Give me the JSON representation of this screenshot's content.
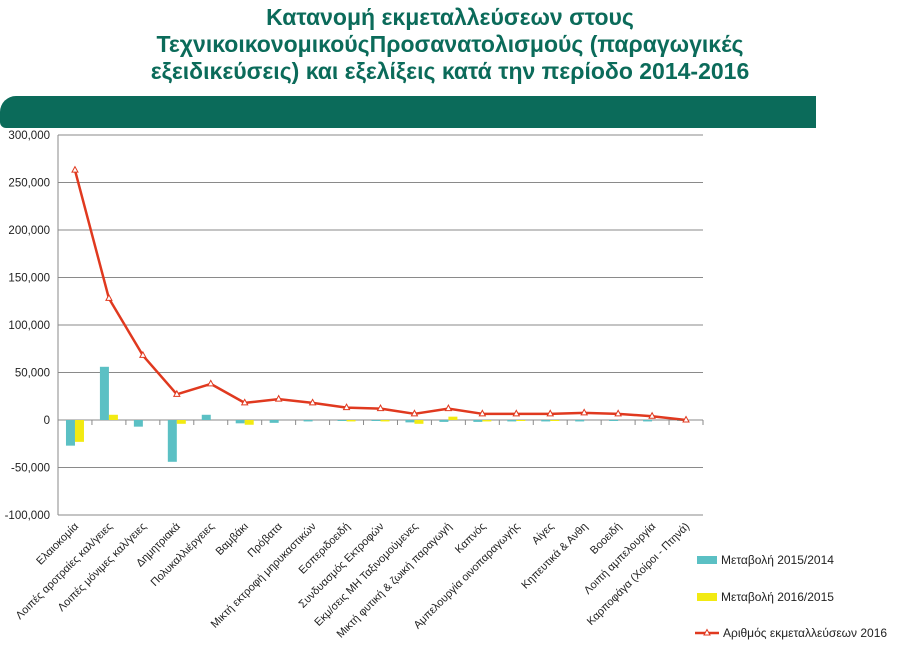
{
  "page": {
    "title_lines": [
      "Κατανομή  εκμεταλλεύσεων στους",
      "ΤεχνικοικονομικούςΠροσανατολισμούς (παραγωγικές",
      "εξειδικεύσεις) και εξελίξεις κατά την περίοδο 2014-2016"
    ]
  },
  "colors": {
    "title": "#0b6b5a",
    "banner": "#0b6b5a",
    "series_2015_2014": "#5bc0c4",
    "series_2016_2015": "#f2ea12",
    "series_total_2016": "#e0391f"
  },
  "chart_data": {
    "type": "bar",
    "title": "",
    "xlabel": "",
    "ylabel": "",
    "ylim": [
      -100000,
      300000
    ],
    "yticks": [
      300000,
      250000,
      200000,
      150000,
      100000,
      50000,
      0,
      -50000,
      -100000
    ],
    "ytick_labels": [
      "300,000",
      "250,000",
      "200,000",
      "150,000",
      "100,000",
      "50,000",
      "0",
      "-50,000",
      "-100,000"
    ],
    "grid": true,
    "legend_position": "right",
    "categories": [
      "Ελαιοκομία",
      "Λοιπές αροτραίες καλ/γειες",
      "Λοιπές μόνιμες καλ/γειες",
      "Δημητριακά",
      "Πολυκαλλιέργειες",
      "Βαμβάκι",
      "Πρόβατα",
      "Μικτή εκτροφή μηρυκαστικών",
      "Εσπεριδοειδή",
      "Συνδυασμός Εκτροφών",
      "Εκμ/σεις  ΜΗ  Ταξινομούμενες",
      "Μικτή φυτική & ζωική παραγωγή",
      "Καπνός",
      "Αμπελουργία οινοπαραγωγής",
      "Αίγες",
      "Κηπευτικά & Ανθη",
      "Βοοειδή",
      "Λοιπή αμπελουργία",
      "Καρποφάγα (Χοίροι - Πτηνά)"
    ],
    "series": [
      {
        "name": "Μεταβολή 2015/2014",
        "type": "bar",
        "values": [
          -27000,
          56000,
          -7000,
          -44000,
          5500,
          -3500,
          -3000,
          -1500,
          -1000,
          -1000,
          -2500,
          -2000,
          -2000,
          -1500,
          -1500,
          -1500,
          -1000,
          -1500,
          -500
        ]
      },
      {
        "name": "Μεταβολή 2016/2015",
        "type": "bar",
        "values": [
          -23000,
          5500,
          0,
          -4000,
          0,
          -5000,
          0,
          0,
          -1500,
          -1500,
          -4000,
          3500,
          -1500,
          -1000,
          -1000,
          0,
          0,
          0,
          0
        ]
      },
      {
        "name": "Αριθμός εκμεταλλεύσεων 2016",
        "type": "line",
        "values": [
          263000,
          128000,
          68000,
          27000,
          38000,
          18000,
          22000,
          18000,
          13000,
          12000,
          6500,
          12000,
          6500,
          6500,
          6500,
          7500,
          6500,
          4000,
          0
        ]
      }
    ]
  }
}
